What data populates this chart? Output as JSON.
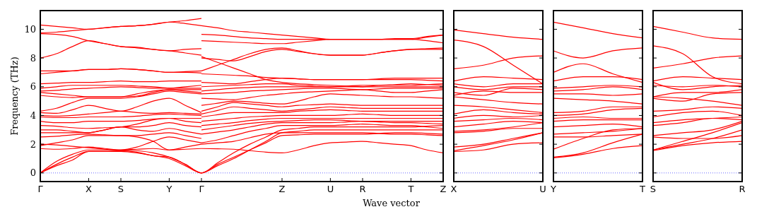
{
  "chart_data": [
    {
      "type": "line",
      "xlabel": "Wave vector",
      "ylabel": "Frequency (THz)",
      "ylim": [
        -0.6,
        11.3
      ],
      "categories": [
        "Γ",
        null,
        null,
        "X",
        null,
        "S",
        null,
        null,
        "Y",
        null,
        "Γ",
        null,
        null,
        null,
        null,
        "Z",
        null,
        null,
        "U",
        null,
        "R",
        null,
        null,
        "T",
        null,
        "Z"
      ],
      "yticks": [
        0,
        2,
        4,
        6,
        8,
        10
      ],
      "marker": "none",
      "line_style": "solid",
      "ref_lines": [
        {
          "axis": "y",
          "value": 0,
          "color": "#0000ff",
          "line_style": "dotted"
        }
      ],
      "series": [
        {
          "color": "#ff0000",
          "values": [
            0,
            0.5,
            0.9,
            1.5,
            1.5,
            1.5,
            1.4,
            1.2,
            1.0,
            0.5,
            0,
            0.6,
            1.1,
            1.6,
            2.1,
            2.6,
            2.65,
            2.7,
            2.7,
            2.7,
            2.7,
            2.75,
            2.8,
            2.8,
            2.75,
            2.7
          ]
        },
        {
          "color": "#ff0000",
          "values": [
            0,
            0.6,
            1.1,
            1.5,
            1.5,
            1.55,
            1.45,
            1.2,
            1.1,
            0.6,
            0,
            0.5,
            1.0,
            1.6,
            2.2,
            2.8,
            2.9,
            3.0,
            3.0,
            3.0,
            3.0,
            3.0,
            3.0,
            3.0,
            3.0,
            3.0
          ]
        },
        {
          "color": "#ff0000",
          "values": [
            0,
            0.8,
            1.3,
            1.6,
            1.6,
            1.6,
            1.55,
            1.4,
            1.1,
            0.6,
            0,
            0.7,
            1.4,
            2.0,
            2.5,
            3.0,
            3.1,
            3.2,
            3.2,
            3.2,
            3.2,
            3.2,
            3.2,
            3.2,
            3.25,
            3.3
          ]
        },
        {
          "color": "#ff0000",
          "values": [
            1.7,
            1.65,
            1.7,
            1.8,
            1.7,
            1.6,
            1.65,
            1.7,
            1.6,
            1.65,
            1.7,
            null,
            null,
            null,
            null,
            null,
            null,
            null,
            null,
            null,
            null,
            null,
            null,
            null,
            null,
            null
          ]
        },
        {
          "color": "#ff0000",
          "values": [
            1.9,
            2.1,
            2.3,
            2.6,
            2.6,
            2.6,
            2.5,
            2.2,
            1.6,
            1.8,
            2.0,
            null,
            null,
            null,
            null,
            null,
            null,
            null,
            null,
            null,
            null,
            null,
            null,
            null,
            null,
            null
          ]
        },
        {
          "color": "#ff0000",
          "values": [
            2.0,
            1.95,
            1.85,
            1.75,
            1.65,
            1.6,
            1.8,
            2.2,
            2.5,
            2.3,
            2.1,
            null,
            null,
            null,
            null,
            null,
            null,
            null,
            null,
            null,
            null,
            null,
            null,
            null,
            null,
            null
          ]
        },
        {
          "color": "#ff0000",
          "values": [
            2.5,
            2.55,
            2.65,
            2.7,
            2.65,
            2.6,
            2.6,
            2.7,
            2.8,
            2.6,
            2.4,
            null,
            null,
            null,
            null,
            null,
            null,
            null,
            null,
            null,
            null,
            null,
            null,
            null,
            null,
            null
          ]
        },
        {
          "color": "#ff0000",
          "values": [
            2.8,
            2.8,
            2.8,
            2.8,
            3.0,
            3.2,
            3.0,
            2.9,
            3.1,
            2.9,
            2.7,
            null,
            null,
            null,
            null,
            null,
            null,
            null,
            null,
            null,
            null,
            null,
            null,
            null,
            null,
            null
          ]
        },
        {
          "color": "#ff0000",
          "values": [
            3.0,
            3.0,
            2.9,
            2.8,
            3.0,
            3.2,
            3.2,
            3.3,
            3.5,
            3.3,
            3.2,
            null,
            null,
            null,
            null,
            null,
            null,
            null,
            null,
            null,
            null,
            null,
            null,
            null,
            null,
            null
          ]
        },
        {
          "color": "#ff0000",
          "values": [
            3.3,
            3.25,
            3.15,
            3.1,
            3.15,
            3.2,
            3.4,
            3.7,
            3.8,
            3.6,
            3.5,
            null,
            null,
            null,
            null,
            null,
            null,
            null,
            null,
            null,
            null,
            null,
            null,
            null,
            null,
            null
          ]
        },
        {
          "color": "#ff0000",
          "values": [
            3.6,
            3.5,
            3.5,
            3.6,
            3.6,
            3.6,
            3.65,
            3.75,
            3.8,
            3.8,
            3.8,
            null,
            null,
            null,
            null,
            null,
            null,
            null,
            null,
            null,
            null,
            null,
            null,
            null,
            null,
            null
          ]
        },
        {
          "color": "#ff0000",
          "values": [
            3.9,
            3.85,
            3.85,
            3.9,
            3.9,
            3.9,
            3.95,
            4.05,
            4.1,
            4.05,
            4.0,
            null,
            null,
            null,
            null,
            null,
            null,
            null,
            null,
            null,
            null,
            null,
            null,
            null,
            null,
            null
          ]
        },
        {
          "color": "#ff0000",
          "values": [
            4.0,
            3.95,
            4.0,
            4.1,
            4.2,
            4.3,
            4.2,
            4.15,
            4.2,
            4.15,
            4.1,
            null,
            null,
            null,
            null,
            null,
            null,
            null,
            null,
            null,
            null,
            null,
            null,
            null,
            null,
            null
          ]
        },
        {
          "color": "#ff0000",
          "values": [
            4.2,
            4.15,
            4.4,
            4.7,
            4.5,
            4.3,
            4.6,
            5.0,
            5.2,
            4.7,
            4.2,
            null,
            null,
            null,
            null,
            null,
            null,
            null,
            null,
            null,
            null,
            null,
            null,
            null,
            null,
            null
          ]
        },
        {
          "color": "#ff0000",
          "values": [
            4.3,
            4.5,
            4.9,
            5.2,
            5.2,
            5.2,
            5.3,
            5.5,
            5.7,
            5.6,
            5.5,
            null,
            null,
            null,
            null,
            null,
            null,
            null,
            null,
            null,
            null,
            null,
            null,
            null,
            null,
            null
          ]
        },
        {
          "color": "#ff0000",
          "values": [
            5.4,
            5.3,
            5.25,
            5.3,
            5.3,
            5.3,
            5.35,
            5.6,
            5.8,
            5.7,
            5.6,
            null,
            null,
            null,
            null,
            null,
            null,
            null,
            null,
            null,
            null,
            null,
            null,
            null,
            null,
            null
          ]
        },
        {
          "color": "#ff0000",
          "values": [
            5.6,
            5.5,
            5.4,
            5.3,
            5.3,
            5.3,
            5.5,
            5.7,
            5.8,
            5.8,
            5.8,
            null,
            null,
            null,
            null,
            null,
            null,
            null,
            null,
            null,
            null,
            null,
            null,
            null,
            null,
            null
          ]
        },
        {
          "color": "#ff0000",
          "values": [
            5.7,
            5.75,
            5.85,
            5.9,
            5.95,
            6.0,
            5.95,
            5.9,
            5.9,
            5.9,
            5.9,
            null,
            null,
            null,
            null,
            null,
            null,
            null,
            null,
            null,
            null,
            null,
            null,
            null,
            null,
            null
          ]
        },
        {
          "color": "#ff0000",
          "values": [
            5.9,
            6.0,
            6.1,
            6.1,
            6.1,
            6.1,
            6.05,
            6.0,
            5.9,
            6.0,
            6.1,
            null,
            null,
            null,
            null,
            null,
            null,
            null,
            null,
            null,
            null,
            null,
            null,
            null,
            null,
            null
          ]
        },
        {
          "color": "#ff0000",
          "values": [
            6.2,
            6.25,
            6.3,
            6.3,
            6.35,
            6.4,
            6.35,
            6.35,
            6.4,
            6.4,
            6.4,
            null,
            null,
            null,
            null,
            null,
            null,
            null,
            null,
            null,
            null,
            null,
            null,
            null,
            null,
            null
          ]
        },
        {
          "color": "#ff0000",
          "values": [
            6.9,
            7.0,
            7.1,
            7.2,
            7.2,
            7.25,
            7.2,
            7.1,
            7.0,
            7.05,
            7.1,
            null,
            null,
            null,
            null,
            null,
            null,
            null,
            null,
            null,
            null,
            null,
            null,
            null,
            null,
            null
          ]
        },
        {
          "color": "#ff0000",
          "values": [
            7.1,
            7.1,
            7.1,
            7.2,
            7.2,
            7.25,
            7.2,
            7.1,
            7.0,
            7.0,
            6.95,
            null,
            null,
            null,
            null,
            null,
            null,
            null,
            null,
            null,
            null,
            null,
            null,
            null,
            null,
            null
          ]
        },
        {
          "color": "#ff0000",
          "values": [
            8.0,
            8.3,
            8.8,
            9.2,
            9.0,
            8.8,
            8.7,
            8.6,
            8.5,
            8.35,
            8.2,
            null,
            null,
            null,
            null,
            null,
            null,
            null,
            null,
            null,
            null,
            null,
            null,
            null,
            null,
            null
          ]
        },
        {
          "color": "#ff0000",
          "values": [
            9.7,
            9.65,
            9.5,
            9.2,
            9.0,
            8.8,
            8.75,
            8.6,
            8.5,
            8.6,
            8.65,
            null,
            null,
            null,
            null,
            null,
            null,
            null,
            null,
            null,
            null,
            null,
            null,
            null,
            null,
            null
          ]
        },
        {
          "color": "#ff0000",
          "values": [
            9.75,
            9.8,
            9.9,
            10.0,
            10.1,
            10.2,
            10.25,
            10.35,
            10.5,
            10.6,
            10.75,
            null,
            null,
            null,
            null,
            null,
            null,
            null,
            null,
            null,
            null,
            null,
            null,
            null,
            null,
            null
          ]
        },
        {
          "color": "#ff0000",
          "values": [
            10.3,
            10.2,
            10.1,
            10.0,
            10.1,
            10.2,
            10.25,
            10.35,
            10.5,
            10.4,
            10.25,
            null,
            null,
            null,
            null,
            null,
            null,
            null,
            null,
            null,
            null,
            null,
            null,
            null,
            null,
            null
          ]
        },
        {
          "color": "#ff0000",
          "values": [
            null,
            null,
            null,
            null,
            null,
            null,
            null,
            null,
            null,
            null,
            1.7,
            1.68,
            1.65,
            1.55,
            1.45,
            1.4,
            1.6,
            1.9,
            2.1,
            2.15,
            2.2,
            2.1,
            2.0,
            1.9,
            1.6,
            1.4
          ]
        },
        {
          "color": "#ff0000",
          "values": [
            null,
            null,
            null,
            null,
            null,
            null,
            null,
            null,
            null,
            null,
            2.0,
            2.1,
            2.2,
            2.45,
            2.7,
            2.8,
            2.8,
            2.8,
            2.8,
            2.8,
            2.8,
            2.75,
            2.7,
            2.7,
            2.65,
            2.6
          ]
        },
        {
          "color": "#ff0000",
          "values": [
            null,
            null,
            null,
            null,
            null,
            null,
            null,
            null,
            null,
            null,
            2.1,
            2.3,
            2.6,
            2.9,
            3.1,
            3.3,
            3.3,
            3.3,
            3.3,
            3.35,
            3.4,
            3.35,
            3.3,
            3.3,
            3.2,
            3.1
          ]
        },
        {
          "color": "#ff0000",
          "values": [
            null,
            null,
            null,
            null,
            null,
            null,
            null,
            null,
            null,
            null,
            2.7,
            2.85,
            3.0,
            3.2,
            3.4,
            3.5,
            3.5,
            3.5,
            3.5,
            3.55,
            3.6,
            3.55,
            3.5,
            3.5,
            3.45,
            3.4
          ]
        },
        {
          "color": "#ff0000",
          "values": [
            null,
            null,
            null,
            null,
            null,
            null,
            null,
            null,
            null,
            null,
            3.0,
            3.15,
            3.3,
            3.45,
            3.55,
            3.6,
            3.65,
            3.7,
            3.7,
            3.65,
            3.6,
            3.6,
            3.6,
            3.6,
            3.6,
            3.6
          ]
        },
        {
          "color": "#ff0000",
          "values": [
            null,
            null,
            null,
            null,
            null,
            null,
            null,
            null,
            null,
            null,
            3.3,
            3.4,
            3.5,
            3.65,
            3.75,
            3.8,
            3.8,
            3.8,
            3.8,
            3.8,
            3.8,
            3.8,
            3.8,
            3.8,
            3.8,
            3.8
          ]
        },
        {
          "color": "#ff0000",
          "values": [
            null,
            null,
            null,
            null,
            null,
            null,
            null,
            null,
            null,
            null,
            3.6,
            3.7,
            3.8,
            3.9,
            3.95,
            4.0,
            4.0,
            4.0,
            4.0,
            4.05,
            4.1,
            4.05,
            4.0,
            4.0,
            4.0,
            4.0
          ]
        },
        {
          "color": "#ff0000",
          "values": [
            null,
            null,
            null,
            null,
            null,
            null,
            null,
            null,
            null,
            null,
            3.9,
            4.05,
            4.2,
            4.2,
            4.2,
            4.2,
            4.3,
            4.35,
            4.4,
            4.35,
            4.3,
            4.3,
            4.3,
            4.3,
            4.3,
            4.3
          ]
        },
        {
          "color": "#ff0000",
          "values": [
            null,
            null,
            null,
            null,
            null,
            null,
            null,
            null,
            null,
            null,
            4.1,
            4.35,
            4.6,
            4.5,
            4.4,
            4.3,
            4.4,
            4.5,
            4.6,
            4.55,
            4.5,
            4.5,
            4.5,
            4.5,
            4.5,
            4.5
          ]
        },
        {
          "color": "#ff0000",
          "values": [
            null,
            null,
            null,
            null,
            null,
            null,
            null,
            null,
            null,
            null,
            4.3,
            4.6,
            4.9,
            4.8,
            4.7,
            4.6,
            4.7,
            4.75,
            4.8,
            4.75,
            4.7,
            4.7,
            4.7,
            4.7,
            4.7,
            4.7
          ]
        },
        {
          "color": "#ff0000",
          "values": [
            null,
            null,
            null,
            null,
            null,
            null,
            null,
            null,
            null,
            null,
            4.7,
            4.85,
            5.0,
            4.95,
            4.85,
            4.8,
            5.0,
            5.3,
            5.5,
            5.45,
            5.4,
            5.35,
            5.3,
            5.3,
            5.25,
            5.2
          ]
        },
        {
          "color": "#ff0000",
          "values": [
            null,
            null,
            null,
            null,
            null,
            null,
            null,
            null,
            null,
            null,
            5.2,
            5.15,
            5.1,
            5.25,
            5.4,
            5.5,
            5.6,
            5.65,
            5.7,
            5.75,
            5.8,
            5.7,
            5.6,
            5.6,
            5.7,
            5.8
          ]
        },
        {
          "color": "#ff0000",
          "values": [
            null,
            null,
            null,
            null,
            null,
            null,
            null,
            null,
            null,
            null,
            5.5,
            5.55,
            5.6,
            5.7,
            5.75,
            5.8,
            5.85,
            5.9,
            5.9,
            5.85,
            5.8,
            5.85,
            5.9,
            5.9,
            5.9,
            5.9
          ]
        },
        {
          "color": "#ff0000",
          "values": [
            null,
            null,
            null,
            null,
            null,
            null,
            null,
            null,
            null,
            null,
            5.7,
            5.8,
            5.9,
            5.95,
            6.0,
            6.0,
            6.0,
            6.0,
            6.0,
            6.0,
            6.0,
            6.0,
            6.0,
            6.0,
            6.0,
            6.0
          ]
        },
        {
          "color": "#ff0000",
          "values": [
            null,
            null,
            null,
            null,
            null,
            null,
            null,
            null,
            null,
            null,
            6.0,
            6.05,
            6.1,
            6.15,
            6.2,
            6.2,
            6.1,
            6.05,
            6.0,
            6.05,
            6.1,
            6.1,
            6.1,
            6.1,
            6.15,
            6.2
          ]
        },
        {
          "color": "#ff0000",
          "values": [
            null,
            null,
            null,
            null,
            null,
            null,
            null,
            null,
            null,
            null,
            6.3,
            6.25,
            6.2,
            6.35,
            6.5,
            6.6,
            6.55,
            6.5,
            6.5,
            6.5,
            6.5,
            6.5,
            6.5,
            6.5,
            6.45,
            6.4
          ]
        },
        {
          "color": "#ff0000",
          "values": [
            null,
            null,
            null,
            null,
            null,
            null,
            null,
            null,
            null,
            null,
            6.9,
            6.85,
            6.8,
            6.75,
            6.65,
            6.6,
            6.55,
            6.5,
            6.5,
            6.5,
            6.5,
            6.55,
            6.6,
            6.6,
            6.6,
            6.6
          ]
        },
        {
          "color": "#ff0000",
          "values": [
            null,
            null,
            null,
            null,
            null,
            null,
            null,
            null,
            null,
            null,
            7.1,
            7.5,
            7.9,
            8.3,
            8.6,
            8.7,
            8.5,
            8.3,
            8.2,
            8.2,
            8.2,
            8.35,
            8.5,
            8.6,
            8.6,
            8.6
          ]
        },
        {
          "color": "#ff0000",
          "values": [
            null,
            null,
            null,
            null,
            null,
            null,
            null,
            null,
            null,
            null,
            8.1,
            7.7,
            7.3,
            6.9,
            6.5,
            6.3,
            6.2,
            6.15,
            6.1,
            6.05,
            6.0,
            6.1,
            6.15,
            6.2,
            6.15,
            6.1
          ]
        },
        {
          "color": "#ff0000",
          "values": [
            null,
            null,
            null,
            null,
            null,
            null,
            null,
            null,
            null,
            null,
            8.0,
            7.9,
            7.8,
            8.1,
            8.45,
            8.6,
            8.45,
            8.3,
            8.2,
            8.2,
            8.2,
            8.35,
            8.5,
            8.6,
            8.65,
            8.7
          ]
        },
        {
          "color": "#ff0000",
          "values": [
            null,
            null,
            null,
            null,
            null,
            null,
            null,
            null,
            null,
            null,
            9.2,
            9.15,
            9.1,
            9.05,
            9.0,
            9.0,
            9.1,
            9.2,
            9.3,
            9.3,
            9.3,
            9.3,
            9.3,
            9.3,
            9.2,
            9.05
          ]
        },
        {
          "color": "#ff0000",
          "values": [
            null,
            null,
            null,
            null,
            null,
            null,
            null,
            null,
            null,
            null,
            9.65,
            9.6,
            9.5,
            9.4,
            9.35,
            9.3,
            9.3,
            9.3,
            9.3,
            9.3,
            9.3,
            9.3,
            9.3,
            9.3,
            9.45,
            9.6
          ]
        },
        {
          "color": "#ff0000",
          "values": [
            null,
            null,
            null,
            null,
            null,
            null,
            null,
            null,
            null,
            null,
            10.25,
            10.1,
            9.9,
            9.8,
            9.7,
            9.6,
            9.5,
            9.4,
            9.3,
            9.3,
            9.3,
            9.3,
            9.35,
            9.35,
            9.5,
            9.6
          ]
        }
      ]
    },
    {
      "type": "line",
      "ylim": [
        -0.6,
        11.3
      ],
      "categories": [
        "X",
        null,
        null,
        "U"
      ],
      "yticks": [
        0,
        2,
        4,
        6,
        8,
        10
      ],
      "tick_labels": "x",
      "marker": "none",
      "line_style": "solid",
      "ref_lines": [
        {
          "axis": "y",
          "value": 0,
          "color": "#0000ff",
          "line_style": "dotted"
        }
      ],
      "series": [
        {
          "color": "#ff0000",
          "values": [
            9.95,
            9.7,
            9.45,
            9.3
          ]
        },
        {
          "color": "#ff0000",
          "values": [
            9.25,
            8.8,
            7.5,
            6.2
          ]
        },
        {
          "color": "#ff0000",
          "values": [
            7.25,
            7.5,
            8.0,
            8.15
          ]
        },
        {
          "color": "#ff0000",
          "values": [
            6.4,
            6.7,
            6.6,
            6.5
          ]
        },
        {
          "color": "#ff0000",
          "values": [
            6.2,
            6.0,
            6.2,
            6.2
          ]
        },
        {
          "color": "#ff0000",
          "values": [
            6.0,
            5.8,
            6.0,
            6.0
          ]
        },
        {
          "color": "#ff0000",
          "values": [
            5.6,
            5.4,
            5.9,
            5.8
          ]
        },
        {
          "color": "#ff0000",
          "values": [
            5.4,
            5.7,
            5.6,
            5.6
          ]
        },
        {
          "color": "#ff0000",
          "values": [
            5.3,
            5.1,
            4.9,
            4.8
          ]
        },
        {
          "color": "#ff0000",
          "values": [
            4.7,
            4.6,
            4.4,
            4.2
          ]
        },
        {
          "color": "#ff0000",
          "values": [
            4.1,
            4.4,
            4.2,
            4.1
          ]
        },
        {
          "color": "#ff0000",
          "values": [
            3.8,
            4.0,
            3.9,
            4.0
          ]
        },
        {
          "color": "#ff0000",
          "values": [
            3.6,
            3.7,
            3.8,
            3.7
          ]
        },
        {
          "color": "#ff0000",
          "values": [
            3.2,
            3.4,
            3.6,
            3.5
          ]
        },
        {
          "color": "#ff0000",
          "values": [
            2.9,
            3.0,
            3.2,
            3.5
          ]
        },
        {
          "color": "#ff0000",
          "values": [
            2.8,
            2.9,
            3.1,
            3.1
          ]
        },
        {
          "color": "#ff0000",
          "values": [
            1.8,
            2.0,
            2.4,
            2.8
          ]
        },
        {
          "color": "#ff0000",
          "values": [
            1.55,
            1.9,
            2.3,
            2.8
          ]
        },
        {
          "color": "#ff0000",
          "values": [
            1.5,
            1.6,
            2.0,
            2.1
          ]
        }
      ]
    },
    {
      "type": "line",
      "ylim": [
        -0.6,
        11.3
      ],
      "categories": [
        "Y",
        null,
        null,
        "T"
      ],
      "yticks": [
        0,
        2,
        4,
        6,
        8,
        10
      ],
      "tick_labels": "x",
      "marker": "none",
      "line_style": "solid",
      "ref_lines": [
        {
          "axis": "y",
          "value": 0,
          "color": "#0000ff",
          "line_style": "dotted"
        }
      ],
      "series": [
        {
          "color": "#ff0000",
          "values": [
            10.5,
            10.1,
            9.7,
            9.4
          ]
        },
        {
          "color": "#ff0000",
          "values": [
            8.5,
            8.0,
            8.5,
            8.7
          ]
        },
        {
          "color": "#ff0000",
          "values": [
            7.0,
            7.6,
            6.9,
            6.3
          ]
        },
        {
          "color": "#ff0000",
          "values": [
            6.4,
            6.7,
            6.7,
            6.5
          ]
        },
        {
          "color": "#ff0000",
          "values": [
            5.9,
            6.0,
            6.1,
            6.0
          ]
        },
        {
          "color": "#ff0000",
          "values": [
            5.7,
            5.8,
            6.0,
            5.8
          ]
        },
        {
          "color": "#ff0000",
          "values": [
            5.5,
            5.5,
            5.4,
            5.5
          ]
        },
        {
          "color": "#ff0000",
          "values": [
            5.2,
            5.1,
            5.0,
            4.8
          ]
        },
        {
          "color": "#ff0000",
          "values": [
            4.2,
            4.3,
            4.6,
            4.6
          ]
        },
        {
          "color": "#ff0000",
          "values": [
            4.0,
            4.1,
            4.4,
            4.5
          ]
        },
        {
          "color": "#ff0000",
          "values": [
            3.8,
            3.9,
            3.8,
            3.8
          ]
        },
        {
          "color": "#ff0000",
          "values": [
            3.6,
            3.7,
            3.7,
            3.7
          ]
        },
        {
          "color": "#ff0000",
          "values": [
            3.2,
            3.3,
            3.4,
            3.2
          ]
        },
        {
          "color": "#ff0000",
          "values": [
            2.7,
            2.8,
            2.9,
            3.1
          ]
        },
        {
          "color": "#ff0000",
          "values": [
            1.65,
            2.4,
            3.0,
            3.1
          ]
        },
        {
          "color": "#ff0000",
          "values": [
            2.5,
            2.5,
            2.6,
            2.7
          ]
        },
        {
          "color": "#ff0000",
          "values": [
            1.1,
            1.4,
            2.1,
            2.7
          ]
        },
        {
          "color": "#ff0000",
          "values": [
            1.05,
            1.3,
            1.7,
            1.9
          ]
        }
      ]
    },
    {
      "type": "line",
      "ylim": [
        -0.6,
        11.3
      ],
      "categories": [
        "S",
        null,
        null,
        "R"
      ],
      "yticks": [
        0,
        2,
        4,
        6,
        8,
        10
      ],
      "tick_labels": "x",
      "marker": "none",
      "line_style": "solid",
      "ref_lines": [
        {
          "axis": "y",
          "value": 0,
          "color": "#0000ff",
          "line_style": "dotted"
        }
      ],
      "series": [
        {
          "color": "#ff0000",
          "values": [
            10.2,
            9.8,
            9.4,
            9.3
          ]
        },
        {
          "color": "#ff0000",
          "values": [
            8.85,
            8.3,
            6.7,
            6.2
          ]
        },
        {
          "color": "#ff0000",
          "values": [
            7.3,
            7.6,
            8.0,
            8.15
          ]
        },
        {
          "color": "#ff0000",
          "values": [
            6.4,
            6.7,
            6.6,
            6.5
          ]
        },
        {
          "color": "#ff0000",
          "values": [
            6.3,
            5.8,
            6.0,
            6.1
          ]
        },
        {
          "color": "#ff0000",
          "values": [
            6.1,
            6.0,
            6.1,
            6.0
          ]
        },
        {
          "color": "#ff0000",
          "values": [
            5.3,
            5.6,
            5.6,
            5.8
          ]
        },
        {
          "color": "#ff0000",
          "values": [
            5.2,
            5.0,
            5.5,
            5.6
          ]
        },
        {
          "color": "#ff0000",
          "values": [
            5.3,
            5.2,
            5.0,
            4.7
          ]
        },
        {
          "color": "#ff0000",
          "values": [
            4.3,
            4.4,
            4.6,
            4.5
          ]
        },
        {
          "color": "#ff0000",
          "values": [
            3.9,
            4.2,
            4.3,
            4.0
          ]
        },
        {
          "color": "#ff0000",
          "values": [
            3.5,
            3.7,
            3.8,
            3.9
          ]
        },
        {
          "color": "#ff0000",
          "values": [
            3.3,
            3.5,
            3.8,
            3.7
          ]
        },
        {
          "color": "#ff0000",
          "values": [
            2.6,
            2.8,
            3.0,
            3.6
          ]
        },
        {
          "color": "#ff0000",
          "values": [
            2.5,
            2.4,
            2.4,
            2.6
          ]
        },
        {
          "color": "#ff0000",
          "values": [
            1.6,
            2.2,
            2.8,
            3.5
          ]
        },
        {
          "color": "#ff0000",
          "values": [
            1.6,
            2.0,
            2.4,
            3.0
          ]
        },
        {
          "color": "#ff0000",
          "values": [
            1.55,
            1.9,
            2.1,
            2.2
          ]
        }
      ]
    }
  ]
}
